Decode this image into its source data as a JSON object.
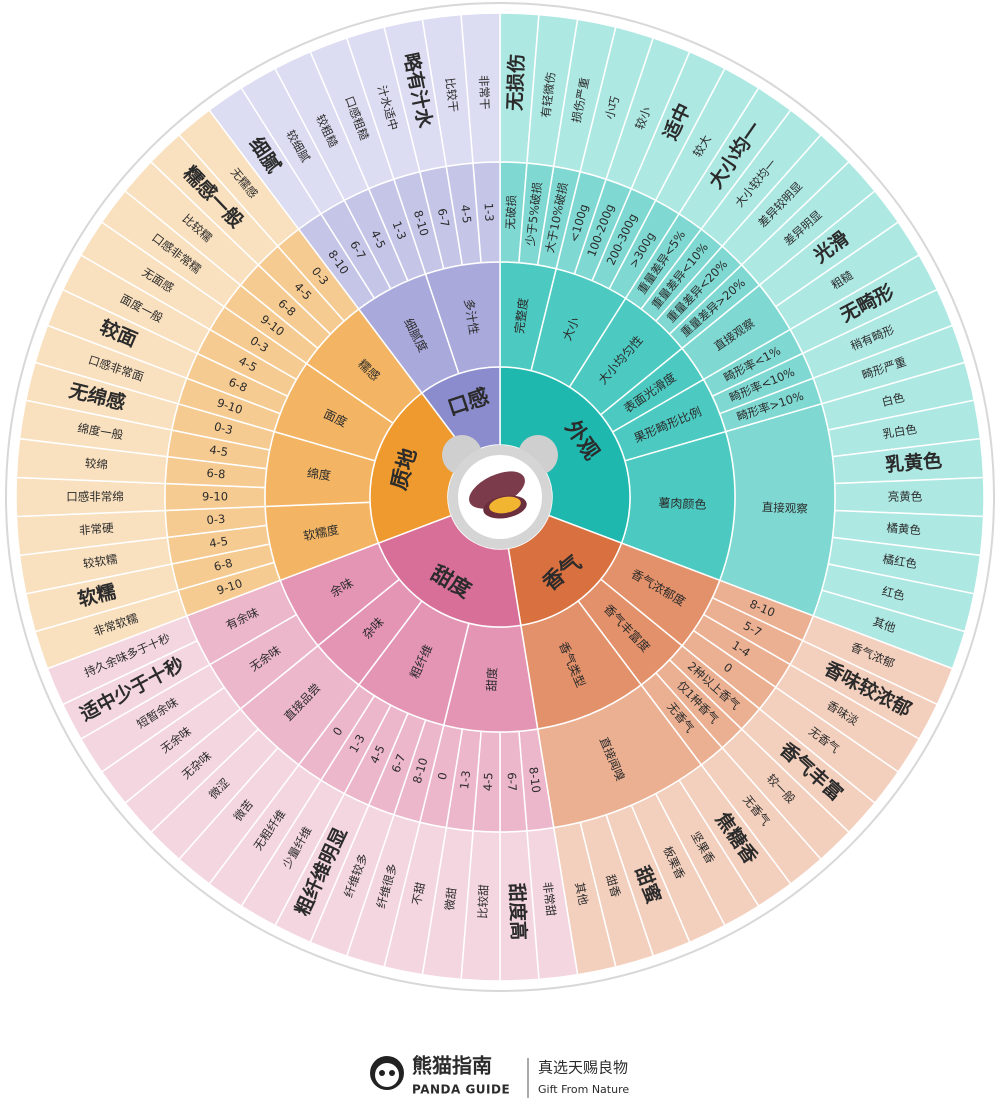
{
  "wheel": {
    "categories": [
      {
        "name": "外观",
        "colors": [
          "#1fb8ae",
          "#4ccac1",
          "#7fd9d2",
          "#aee8e3"
        ],
        "attributes": [
          {
            "name": "完整度",
            "levels": [
              {
                "name": "无破损",
                "descriptors": [
                  {
                    "text": "无损伤",
                    "bold": true
                  }
                ]
              },
              {
                "name": "少于5%破损",
                "descriptors": [
                  "有轻微伤"
                ]
              },
              {
                "name": "大于10%破损",
                "descriptors": [
                  "损伤严重"
                ]
              }
            ]
          },
          {
            "name": "大小",
            "levels": [
              {
                "name": "<100g",
                "descriptors": [
                  "小巧"
                ]
              },
              {
                "name": "100-200g",
                "descriptors": [
                  "较小"
                ]
              },
              {
                "name": "200-300g",
                "descriptors": [
                  {
                    "text": "适中",
                    "bold": true
                  }
                ]
              },
              {
                "name": ">300g",
                "descriptors": [
                  "较大"
                ]
              }
            ]
          },
          {
            "name": "大小均匀性",
            "levels": [
              {
                "name": "重量差异<5%",
                "descriptors": [
                  {
                    "text": "大小均一",
                    "bold": true
                  }
                ]
              },
              {
                "name": "重量差异<10%",
                "descriptors": [
                  "大小较均一"
                ]
              },
              {
                "name": "重量差异<20%",
                "descriptors": [
                  "差异较明显"
                ]
              },
              {
                "name": "重量差异>20%",
                "descriptors": [
                  "差异明显"
                ]
              }
            ]
          },
          {
            "name": "表面光滑度",
            "levels": [
              {
                "name": "直接观察",
                "descriptors": [
                  {
                    "text": "光滑",
                    "bold": true
                  },
                  "粗糙"
                ]
              }
            ]
          },
          {
            "name": "果形畸形比例",
            "levels": [
              {
                "name": "畸形率<1%",
                "descriptors": [
                  {
                    "text": "无畸形",
                    "bold": true
                  }
                ]
              },
              {
                "name": "畸形率<10%",
                "descriptors": [
                  "稍有畸形"
                ]
              },
              {
                "name": "畸形率>10%",
                "descriptors": [
                  "畸形严重"
                ]
              }
            ]
          },
          {
            "name": "薯肉颜色",
            "levels": [
              {
                "name": "直接观察",
                "descriptors": [
                  "白色",
                  "乳白色",
                  {
                    "text": "乳黄色",
                    "bold": true
                  },
                  "亮黄色",
                  "橘黄色",
                  "橘红色",
                  "红色",
                  "其他"
                ]
              }
            ]
          }
        ]
      },
      {
        "name": "香气",
        "colors": [
          "#d9703f",
          "#e3916a",
          "#ebb092",
          "#f3cfbd"
        ],
        "attributes": [
          {
            "name": "香气浓郁度",
            "levels": [
              {
                "name": "8-10",
                "descriptors": [
                  "香气浓郁"
                ]
              },
              {
                "name": "5-7",
                "descriptors": [
                  {
                    "text": "香味较浓郁",
                    "bold": true
                  }
                ]
              },
              {
                "name": "1-4",
                "descriptors": [
                  "香味淡"
                ]
              },
              {
                "name": "0",
                "descriptors": [
                  "无香气"
                ]
              }
            ]
          },
          {
            "name": "香气丰富度",
            "levels": [
              {
                "name": "2种以上香气",
                "descriptors": [
                  {
                    "text": "香气丰富",
                    "bold": true
                  }
                ]
              },
              {
                "name": "仅1种香气",
                "descriptors": [
                  "较一般"
                ]
              },
              {
                "name": "无香气",
                "descriptors": [
                  "无香气"
                ]
              }
            ]
          },
          {
            "name": "香气类型",
            "levels": [
              {
                "name": "直接闻嗅",
                "descriptors": [
                  {
                    "text": "焦糖香",
                    "bold": true
                  },
                  "坚果香",
                  "板栗香",
                  {
                    "text": "甜蜜",
                    "bold": true
                  },
                  "甜香",
                  "其他"
                ]
              }
            ]
          }
        ]
      },
      {
        "name": "甜度",
        "colors": [
          "#d86f98",
          "#e495b4",
          "#ecb6cb",
          "#f4d6e1"
        ],
        "attributes": [
          {
            "name": "甜度",
            "levels": [
              {
                "name": "8-10",
                "descriptors": [
                  "非常甜"
                ]
              },
              {
                "name": "6-7",
                "descriptors": [
                  {
                    "text": "甜度高",
                    "bold": true
                  }
                ]
              },
              {
                "name": "4-5",
                "descriptors": [
                  "比较甜"
                ]
              },
              {
                "name": "1-3",
                "descriptors": [
                  "微甜"
                ]
              },
              {
                "name": "0",
                "descriptors": [
                  "不甜"
                ]
              }
            ]
          },
          {
            "name": "粗纤维",
            "levels": [
              {
                "name": "8-10",
                "descriptors": [
                  "纤维很多"
                ]
              },
              {
                "name": "6-7",
                "descriptors": [
                  "纤维较多"
                ]
              },
              {
                "name": "4-5",
                "descriptors": [
                  {
                    "text": "粗纤维明显",
                    "bold": true
                  }
                ]
              },
              {
                "name": "1-3",
                "descriptors": [
                  "少量纤维"
                ]
              },
              {
                "name": "0",
                "descriptors": [
                  "无粗纤维"
                ]
              }
            ]
          },
          {
            "name": "杂味",
            "levels": [
              {
                "name": "直接品尝",
                "descriptors": [
                  "微苦",
                  "微涩",
                  "无杂味"
                ]
              }
            ]
          },
          {
            "name": "余味",
            "levels": [
              {
                "name": "无余味",
                "descriptors": [
                  "无余味",
                  "短暂余味"
                ]
              },
              {
                "name": "有余味",
                "descriptors": [
                  {
                    "text": "适中少于十秒",
                    "bold": true
                  },
                  "持久余味多于十秒"
                ]
              }
            ]
          }
        ]
      },
      {
        "name": "质地",
        "colors": [
          "#ee9a2f",
          "#f3b564",
          "#f6cb92",
          "#f9e0bf"
        ],
        "attributes": [
          {
            "name": "软糯度",
            "levels": [
              {
                "name": "9-10",
                "descriptors": [
                  "非常软糯"
                ]
              },
              {
                "name": "6-8",
                "descriptors": [
                  {
                    "text": "软糯",
                    "bold": true
                  }
                ]
              },
              {
                "name": "4-5",
                "descriptors": [
                  "较软糯"
                ]
              },
              {
                "name": "0-3",
                "descriptors": [
                  "非常硬"
                ]
              }
            ]
          },
          {
            "name": "绵度",
            "levels": [
              {
                "name": "9-10",
                "descriptors": [
                  "口感非常绵"
                ]
              },
              {
                "name": "6-8",
                "descriptors": [
                  "较绵"
                ]
              },
              {
                "name": "4-5",
                "descriptors": [
                  "绵度一般"
                ]
              },
              {
                "name": "0-3",
                "descriptors": [
                  {
                    "text": "无绵感",
                    "bold": true
                  }
                ]
              }
            ]
          },
          {
            "name": "面度",
            "levels": [
              {
                "name": "9-10",
                "descriptors": [
                  "口感非常面"
                ]
              },
              {
                "name": "6-8",
                "descriptors": [
                  {
                    "text": "较面",
                    "bold": true
                  }
                ]
              },
              {
                "name": "4-5",
                "descriptors": [
                  "面度一般"
                ]
              },
              {
                "name": "0-3",
                "descriptors": [
                  "无面感"
                ]
              }
            ]
          },
          {
            "name": "糯感",
            "levels": [
              {
                "name": "9-10",
                "descriptors": [
                  "口感非常糯"
                ]
              },
              {
                "name": "6-8",
                "descriptors": [
                  "比较糯"
                ]
              },
              {
                "name": "4-5",
                "descriptors": [
                  {
                    "text": "糯感一般",
                    "bold": true
                  }
                ]
              },
              {
                "name": "0-3",
                "descriptors": [
                  "无糯感"
                ]
              }
            ]
          }
        ]
      },
      {
        "name": "口感",
        "colors": [
          "#8b8ccd",
          "#a9a9dc",
          "#c5c5e8",
          "#dcdcf2"
        ],
        "attributes": [
          {
            "name": "细腻度",
            "levels": [
              {
                "name": "8-10",
                "descriptors": [
                  {
                    "text": "细腻",
                    "bold": true
                  }
                ]
              },
              {
                "name": "6-7",
                "descriptors": [
                  "较细腻"
                ]
              },
              {
                "name": "4-5",
                "descriptors": [
                  "较粗糙"
                ]
              },
              {
                "name": "1-3",
                "descriptors": [
                  "口感粗糙"
                ]
              }
            ]
          },
          {
            "name": "多汁性",
            "levels": [
              {
                "name": "8-10",
                "descriptors": [
                  "汁水适中"
                ]
              },
              {
                "name": "6-7",
                "descriptors": [
                  {
                    "text": "略有汁水",
                    "bold": true
                  }
                ]
              },
              {
                "name": "4-5",
                "descriptors": [
                  "比较干"
                ]
              },
              {
                "name": "1-3",
                "descriptors": [
                  "非常干"
                ]
              }
            ]
          }
        ]
      }
    ]
  },
  "footer": {
    "brand_cn": "熊猫指南",
    "brand_en": "PANDA GUIDE",
    "slogan_cn": "真选天赐良物",
    "slogan_en": "Gift From Nature"
  }
}
